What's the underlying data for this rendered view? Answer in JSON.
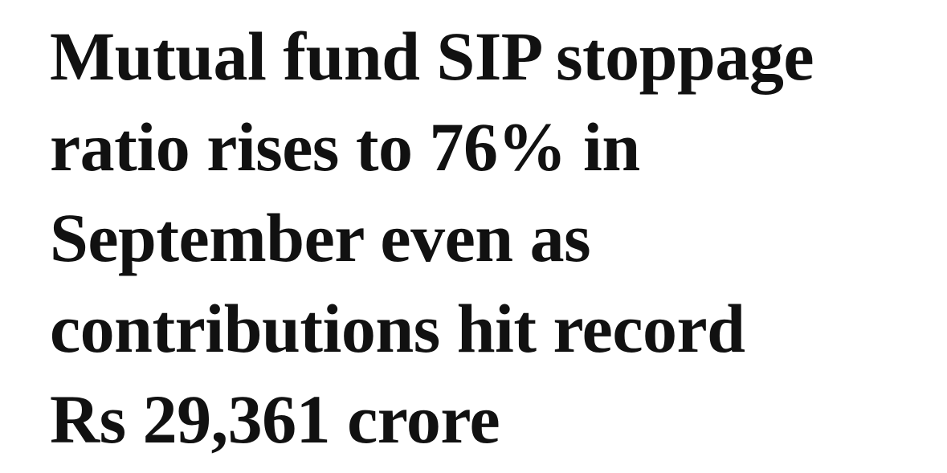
{
  "headline": {
    "lines": [
      "Mutual fund SIP stoppage",
      "ratio rises to 76% in",
      "September even as",
      "contributions hit record",
      "Rs 29,361 crore"
    ]
  }
}
